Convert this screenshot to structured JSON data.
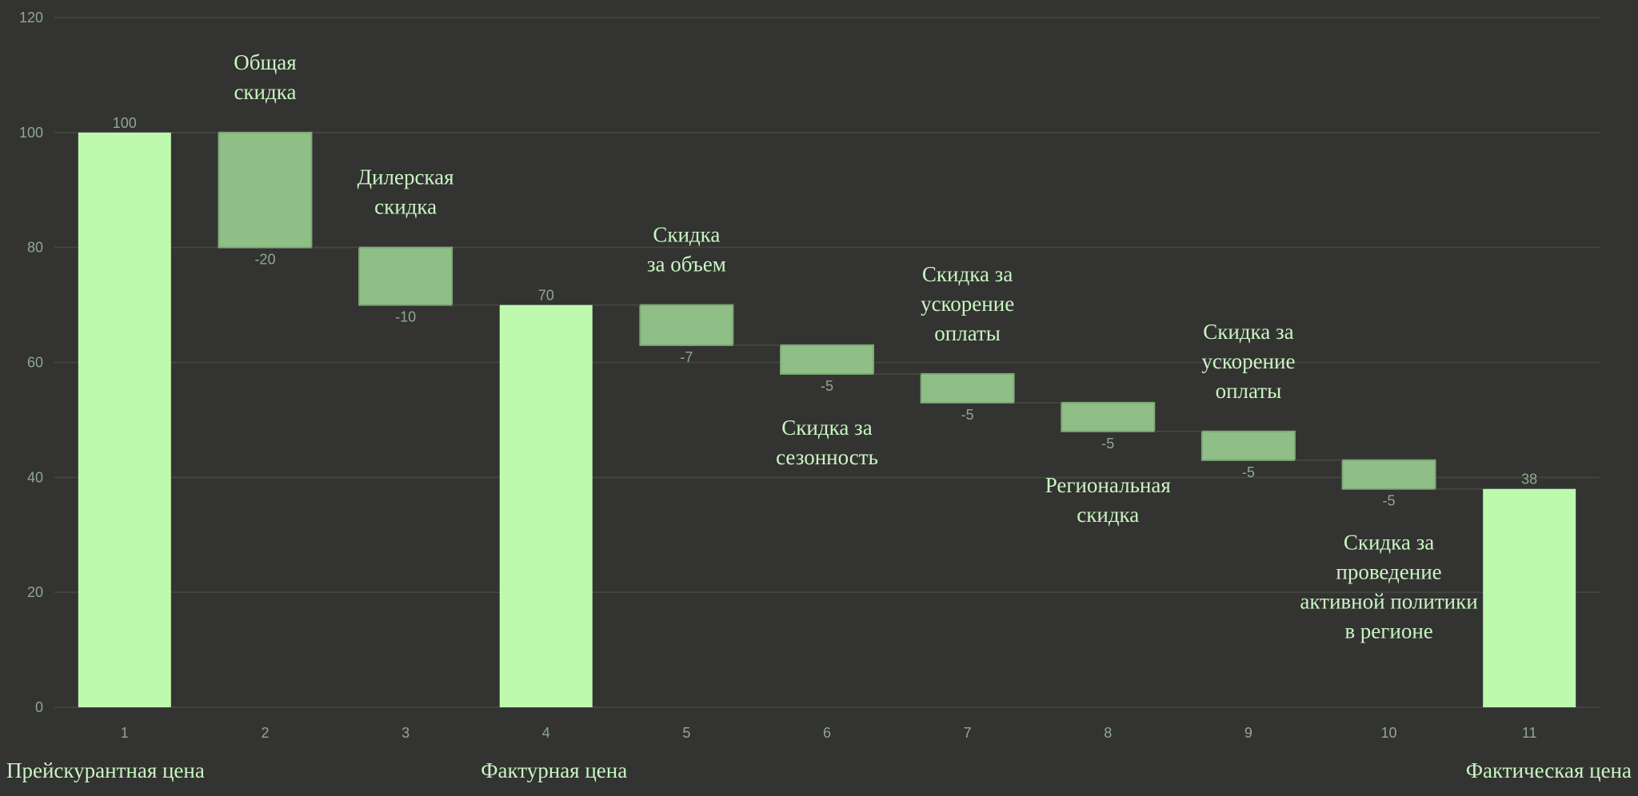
{
  "colors": {
    "background": "#333331",
    "total_bar": "#bdfaae",
    "delta_bar": "#8fbe87",
    "delta_border": "#7da976",
    "grid": "#474745",
    "axis_text": "#8fa891",
    "annotation_text": "#c9f5c3"
  },
  "chart_data": {
    "type": "bar",
    "subtype": "waterfall",
    "categories": [
      "1",
      "2",
      "3",
      "4",
      "5",
      "6",
      "7",
      "8",
      "9",
      "10",
      "11"
    ],
    "values": [
      100,
      -20,
      -10,
      70,
      -7,
      -5,
      -5,
      -5,
      -5,
      -5,
      38
    ],
    "is_total": [
      true,
      false,
      false,
      true,
      false,
      false,
      false,
      false,
      false,
      false,
      true
    ],
    "value_labels": [
      "100",
      "-20",
      "-10",
      "70",
      "-7",
      "-5",
      "-5",
      "-5",
      "-5",
      "-5",
      "38"
    ],
    "ylim": [
      0,
      120
    ],
    "yticks": [
      "0",
      "20",
      "40",
      "60",
      "80",
      "100",
      "120"
    ],
    "grid": true,
    "legend": "none",
    "annotations": [
      {
        "category": "2",
        "position": "above",
        "lines": [
          "Общая",
          "скидка"
        ]
      },
      {
        "category": "3",
        "position": "above",
        "lines": [
          "Дилерская",
          "скидка"
        ]
      },
      {
        "category": "5",
        "position": "above",
        "lines": [
          "Скидка",
          "за объем"
        ]
      },
      {
        "category": "6",
        "position": "below",
        "lines": [
          "Скидка за",
          "сезонность"
        ]
      },
      {
        "category": "7",
        "position": "above",
        "lines": [
          "Скидка за",
          "ускорение",
          "оплаты"
        ]
      },
      {
        "category": "8",
        "position": "below",
        "lines": [
          "Региональная",
          "скидка"
        ]
      },
      {
        "category": "9",
        "position": "above",
        "lines": [
          "Скидка за",
          "ускорение",
          "оплаты"
        ]
      },
      {
        "category": "10",
        "position": "below",
        "lines": [
          "Скидка за",
          "проведение",
          "активной политики",
          "в регионе"
        ]
      }
    ],
    "bottom_labels": [
      {
        "category": "1",
        "text": "Прейскурантная цена"
      },
      {
        "category": "4",
        "text": "Фактурная цена"
      },
      {
        "category": "11",
        "text": "Фактическая цена"
      }
    ]
  }
}
